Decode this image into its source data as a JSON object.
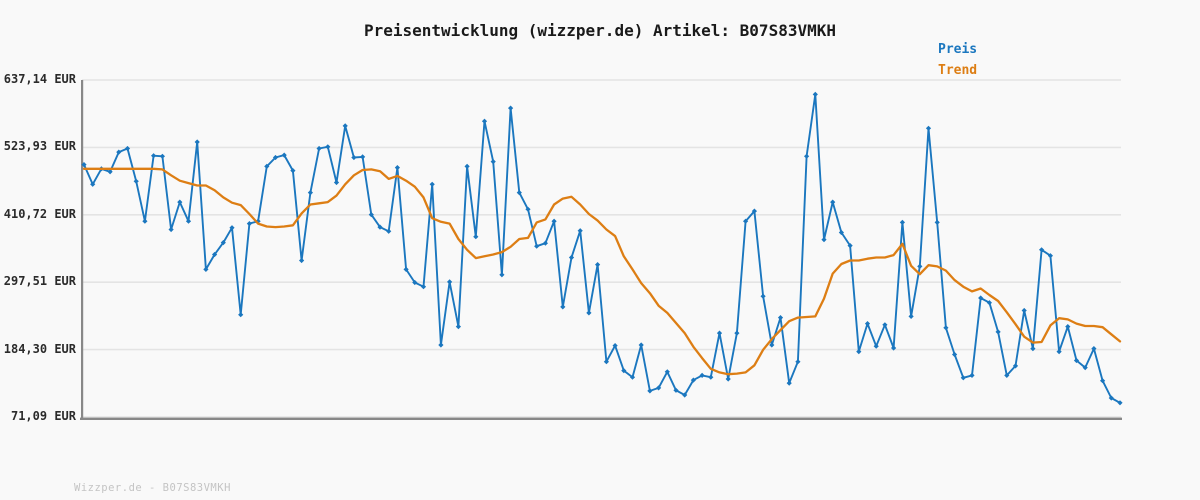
{
  "title": "Preisentwicklung (wizzper.de) Artikel: B07S83VMKH",
  "footer": "Wizzper.de - B07S83VMKH",
  "colors": {
    "price_line": "#1b77bf",
    "trend_line": "#dd7e14",
    "grid": "#e4e4e4",
    "spine": "#888888",
    "background": "#f9f9f9",
    "title_text": "#1a1a1a",
    "tick_text": "#2b2b2b",
    "footer_text": "#c4c4c4"
  },
  "chart_data": {
    "type": "line",
    "title": "Preisentwicklung (wizzper.de) Artikel: B07S83VMKH",
    "xlabel": "",
    "ylabel": "",
    "unit": "EUR",
    "ylim": [
      71.09,
      637.14
    ],
    "grid": "horizontal",
    "x_tick_labels": "none",
    "legend_position": "top-right",
    "yticks": [
      {
        "value": 637.14,
        "label": "637,14 EUR"
      },
      {
        "value": 523.93,
        "label": "523,93 EUR"
      },
      {
        "value": 410.72,
        "label": "410,72 EUR"
      },
      {
        "value": 297.51,
        "label": "297,51 EUR"
      },
      {
        "value": 184.3,
        "label": "184,30 EUR"
      },
      {
        "value": 71.09,
        "label": "71,09 EUR"
      }
    ],
    "legend": [
      {
        "label": "Preis",
        "color": "#1b77bf"
      },
      {
        "label": "Trend",
        "color": "#dd7e14"
      }
    ],
    "series": [
      {
        "name": "Preis",
        "color": "#1b77bf",
        "marker": "diamond",
        "values": [
          495,
          462,
          488,
          483,
          516,
          522,
          467,
          400,
          510,
          509,
          386,
          432,
          400,
          533,
          319,
          344,
          364,
          389,
          243,
          396,
          400,
          492,
          507,
          511,
          485,
          334,
          448,
          522,
          525,
          465,
          560,
          507,
          508,
          411,
          390,
          383,
          490,
          319,
          297,
          290,
          462,
          192,
          298,
          223,
          492,
          374,
          568,
          500,
          310,
          590,
          448,
          420,
          358,
          363,
          400,
          256,
          339,
          384,
          246,
          327,
          164,
          191,
          149,
          138,
          192,
          115,
          120,
          147,
          116,
          108,
          133,
          141,
          138,
          212,
          135,
          212,
          400,
          417,
          274,
          192,
          238,
          128,
          164,
          509,
          613,
          369,
          432,
          381,
          359,
          181,
          228,
          190,
          226,
          187,
          398,
          240,
          324,
          556,
          398,
          221,
          176,
          137,
          141,
          271,
          263,
          214,
          141,
          157,
          250,
          186,
          352,
          342,
          181,
          223,
          166,
          154,
          186,
          132,
          103,
          95
        ]
      },
      {
        "name": "Trend",
        "color": "#dd7e14",
        "marker": "none",
        "values": [
          488,
          488,
          488,
          488,
          488,
          488,
          488,
          488,
          488,
          487,
          477,
          468,
          464,
          460,
          460,
          452,
          440,
          431,
          427,
          412,
          396,
          391,
          390,
          391,
          393,
          413,
          428,
          430,
          432,
          443,
          462,
          477,
          486,
          487,
          484,
          471,
          476,
          468,
          458,
          440,
          405,
          399,
          396,
          370,
          352,
          338,
          341,
          344,
          348,
          357,
          370,
          372,
          398,
          403,
          428,
          438,
          441,
          428,
          412,
          401,
          386,
          375,
          341,
          319,
          296,
          279,
          258,
          246,
          229,
          212,
          189,
          170,
          152,
          146,
          143,
          144,
          146,
          158,
          184,
          202,
          217,
          232,
          238,
          239,
          240,
          270,
          312,
          328,
          334,
          334,
          337,
          339,
          339,
          343,
          362,
          325,
          311,
          326,
          324,
          317,
          301,
          290,
          282,
          287,
          276,
          266,
          247,
          227,
          206,
          196,
          197,
          225,
          237,
          235,
          228,
          224,
          224,
          222,
          210,
          198
        ]
      }
    ]
  }
}
